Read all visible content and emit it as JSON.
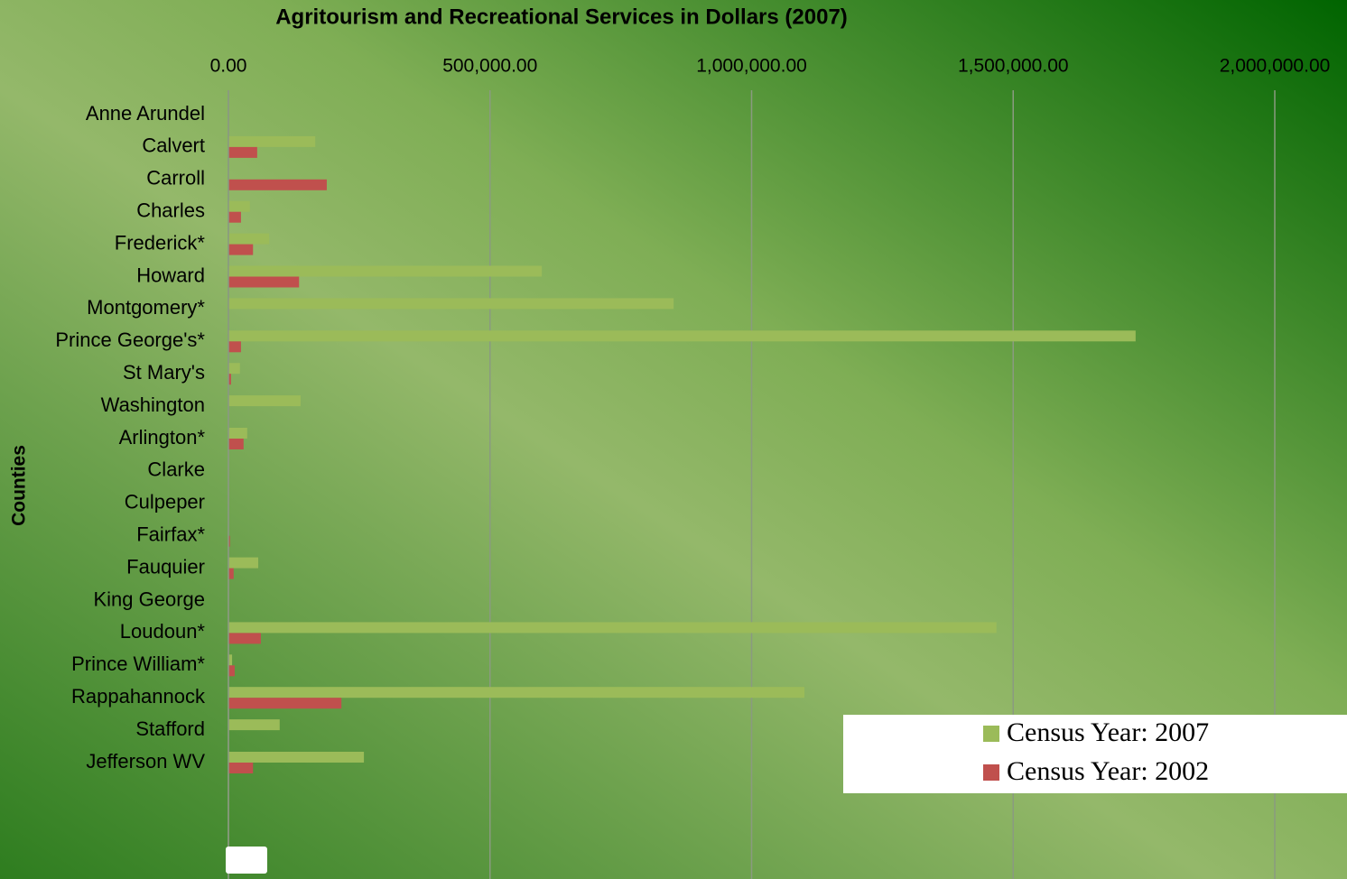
{
  "chart_data": {
    "type": "bar",
    "orientation": "horizontal",
    "title": "Agritourism and Recreational Services in Dollars (2007)",
    "y_label": "Counties",
    "categories": [
      "Anne Arundel",
      "Calvert",
      "Carroll",
      "Charles",
      "Frederick*",
      "Howard",
      "Montgomery*",
      "Prince George's*",
      "St Mary's",
      "Washington",
      "Arlington*",
      "Clarke",
      "Culpeper",
      "Fairfax*",
      "Fauquier",
      "King George",
      "Loudoun*",
      "Prince William*",
      "Rappahannock",
      "Stafford",
      "Jefferson WV"
    ],
    "series": [
      {
        "name": "Census Year: 2007",
        "color": "#9bbb59",
        "values": [
          0,
          166000,
          0,
          41000,
          78000,
          599000,
          851000,
          1734000,
          22000,
          138000,
          36000,
          0,
          0,
          0,
          57000,
          0,
          1468000,
          7000,
          1101000,
          98000,
          259000
        ]
      },
      {
        "name": "Census Year: 2002",
        "color": "#c0504d",
        "values": [
          0,
          55000,
          188000,
          24000,
          47000,
          135000,
          0,
          24000,
          5000,
          0,
          29000,
          0,
          0,
          3000,
          10000,
          0,
          62000,
          12000,
          216000,
          0,
          47000
        ]
      }
    ],
    "xlim": [
      0,
      2000000
    ],
    "xticks": [
      {
        "value": 0,
        "label": "0.00"
      },
      {
        "value": 500000,
        "label": "500,000.00"
      },
      {
        "value": 1000000,
        "label": "1,000,000.00"
      },
      {
        "value": 1500000,
        "label": "1,500,000.00"
      },
      {
        "value": 2000000,
        "label": "2,000,000.00"
      }
    ],
    "grid": true,
    "legend": "lower right"
  }
}
